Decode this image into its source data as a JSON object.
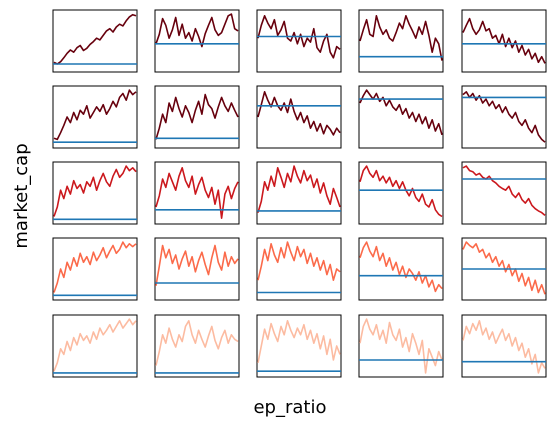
{
  "chart_data": {
    "type": "line",
    "layout": "small-multiples grid, 5 rows x 5 columns, no tick labels",
    "xlabel": "ep_ratio",
    "ylabel": "market_cap",
    "grid": false,
    "colors": {
      "rows": [
        "#67000d",
        "#67000d",
        "#cb181d",
        "#fb6a4a",
        "#fcbba1"
      ],
      "reference_line": "#1f77b4"
    },
    "note": "Each panel: a price-like series (values normalized 0-1 within panel) plus a flat horizontal reference line.",
    "panels": [
      [
        {
          "values": [
            0.12,
            0.09,
            0.13,
            0.2,
            0.28,
            0.34,
            0.3,
            0.38,
            0.42,
            0.33,
            0.37,
            0.44,
            0.49,
            0.55,
            0.52,
            0.6,
            0.68,
            0.72,
            0.66,
            0.75,
            0.8,
            0.77,
            0.86,
            0.93,
            0.97,
            0.95
          ],
          "ref": 0.09
        },
        {
          "values": [
            0.45,
            0.62,
            0.9,
            0.78,
            0.55,
            0.7,
            0.92,
            0.6,
            0.8,
            0.55,
            0.65,
            0.5,
            0.72,
            0.58,
            0.4,
            0.63,
            0.78,
            0.92,
            0.7,
            0.6,
            0.65,
            0.8,
            0.95,
            0.98,
            0.72,
            0.68
          ],
          "ref": 0.45
        },
        {
          "values": [
            0.55,
            0.78,
            0.95,
            0.82,
            0.72,
            0.88,
            0.6,
            0.7,
            0.85,
            0.55,
            0.5,
            0.65,
            0.45,
            0.62,
            0.4,
            0.55,
            0.48,
            0.72,
            0.38,
            0.3,
            0.5,
            0.62,
            0.3,
            0.2,
            0.4,
            0.35
          ],
          "ref": 0.58
        },
        {
          "values": [
            0.5,
            0.7,
            0.88,
            0.62,
            0.58,
            0.95,
            0.75,
            0.62,
            0.7,
            0.55,
            0.5,
            0.65,
            0.82,
            0.72,
            0.95,
            0.8,
            0.68,
            0.55,
            0.75,
            0.62,
            0.85,
            0.6,
            0.3,
            0.55,
            0.45,
            0.15
          ],
          "ref": 0.22
        },
        {
          "values": [
            0.65,
            0.78,
            0.9,
            0.72,
            0.62,
            0.7,
            0.85,
            0.68,
            0.72,
            0.55,
            0.6,
            0.45,
            0.62,
            0.4,
            0.55,
            0.38,
            0.5,
            0.3,
            0.42,
            0.25,
            0.35,
            0.18,
            0.28,
            0.12,
            0.22,
            0.1
          ],
          "ref": 0.45
        }
      ],
      [
        {
          "values": [
            0.12,
            0.1,
            0.22,
            0.35,
            0.5,
            0.4,
            0.58,
            0.45,
            0.62,
            0.55,
            0.7,
            0.48,
            0.58,
            0.68,
            0.6,
            0.72,
            0.55,
            0.65,
            0.78,
            0.68,
            0.85,
            0.92,
            0.8,
            0.98,
            0.9,
            0.95
          ],
          "ref": 0.05
        },
        {
          "values": [
            0.1,
            0.3,
            0.55,
            0.4,
            0.75,
            0.6,
            0.85,
            0.65,
            0.5,
            0.7,
            0.58,
            0.4,
            0.62,
            0.78,
            0.55,
            0.9,
            0.72,
            0.65,
            0.48,
            0.68,
            0.85,
            0.7,
            0.6,
            0.75,
            0.62,
            0.5
          ],
          "ref": 0.12
        },
        {
          "values": [
            0.5,
            0.72,
            0.95,
            0.8,
            0.68,
            0.85,
            0.7,
            0.62,
            0.75,
            0.58,
            0.82,
            0.6,
            0.45,
            0.58,
            0.4,
            0.52,
            0.3,
            0.42,
            0.25,
            0.38,
            0.2,
            0.35,
            0.28,
            0.18,
            0.3,
            0.22
          ],
          "ref": 0.7
        },
        {
          "values": [
            0.75,
            0.88,
            0.98,
            0.9,
            0.82,
            0.92,
            0.78,
            0.85,
            0.7,
            0.8,
            0.68,
            0.62,
            0.72,
            0.55,
            0.65,
            0.48,
            0.58,
            0.42,
            0.55,
            0.38,
            0.5,
            0.3,
            0.45,
            0.25,
            0.38,
            0.18
          ],
          "ref": 0.82
        },
        {
          "values": [
            0.9,
            0.95,
            0.85,
            0.92,
            0.8,
            0.88,
            0.75,
            0.82,
            0.7,
            0.78,
            0.65,
            0.72,
            0.58,
            0.68,
            0.55,
            0.48,
            0.58,
            0.42,
            0.35,
            0.45,
            0.3,
            0.22,
            0.35,
            0.18,
            0.1,
            0.05
          ],
          "ref": 0.85
        }
      ],
      [
        {
          "values": [
            0.08,
            0.25,
            0.55,
            0.4,
            0.62,
            0.48,
            0.72,
            0.58,
            0.65,
            0.5,
            0.7,
            0.62,
            0.78,
            0.55,
            0.72,
            0.85,
            0.7,
            0.62,
            0.8,
            0.92,
            0.78,
            0.85,
            0.98,
            0.9,
            0.95,
            0.88
          ],
          "ref": 0.03
        },
        {
          "values": [
            0.25,
            0.45,
            0.75,
            0.6,
            0.85,
            0.7,
            0.55,
            0.8,
            0.95,
            0.72,
            0.6,
            0.8,
            0.48,
            0.65,
            0.78,
            0.55,
            0.42,
            0.6,
            0.3,
            0.55,
            0.05,
            0.48,
            0.62,
            0.4,
            0.58,
            0.7
          ],
          "ref": 0.2
        },
        {
          "values": [
            0.15,
            0.35,
            0.7,
            0.55,
            0.8,
            0.62,
            0.95,
            0.78,
            0.6,
            0.85,
            0.7,
            0.98,
            0.8,
            0.68,
            0.9,
            0.72,
            0.82,
            0.6,
            0.75,
            0.5,
            0.68,
            0.45,
            0.3,
            0.58,
            0.42,
            0.25
          ],
          "ref": 0.18
        },
        {
          "values": [
            0.7,
            0.9,
            0.98,
            0.85,
            0.78,
            0.9,
            0.72,
            0.8,
            0.68,
            0.78,
            0.62,
            0.72,
            0.58,
            0.7,
            0.55,
            0.45,
            0.58,
            0.42,
            0.35,
            0.48,
            0.3,
            0.25,
            0.38,
            0.2,
            0.12,
            0.08
          ],
          "ref": 0.55
        },
        {
          "values": [
            0.95,
            0.98,
            0.9,
            0.88,
            0.82,
            0.85,
            0.78,
            0.75,
            0.8,
            0.72,
            0.68,
            0.62,
            0.58,
            0.55,
            0.62,
            0.48,
            0.42,
            0.5,
            0.38,
            0.32,
            0.4,
            0.28,
            0.22,
            0.18,
            0.15,
            0.1
          ],
          "ref": 0.75
        }
      ],
      [
        {
          "values": [
            0.08,
            0.25,
            0.5,
            0.35,
            0.62,
            0.48,
            0.7,
            0.55,
            0.78,
            0.62,
            0.72,
            0.58,
            0.8,
            0.65,
            0.75,
            0.88,
            0.7,
            0.82,
            0.92,
            0.78,
            0.85,
            0.98,
            0.88,
            0.95,
            0.9,
            0.95
          ],
          "ref": 0.03
        },
        {
          "values": [
            0.2,
            0.55,
            0.92,
            0.7,
            0.85,
            0.6,
            0.75,
            0.5,
            0.68,
            0.82,
            0.55,
            0.72,
            0.45,
            0.65,
            0.8,
            0.58,
            0.4,
            0.7,
            0.92,
            0.62,
            0.48,
            0.8,
            0.55,
            0.72,
            0.6,
            0.68
          ],
          "ref": 0.25
        },
        {
          "values": [
            0.3,
            0.55,
            0.85,
            0.65,
            0.95,
            0.75,
            0.62,
            0.88,
            0.7,
            0.98,
            0.8,
            0.65,
            0.9,
            0.72,
            0.85,
            0.6,
            0.78,
            0.55,
            0.7,
            0.48,
            0.65,
            0.4,
            0.58,
            0.3,
            0.5,
            0.45
          ],
          "ref": 0.08
        },
        {
          "values": [
            0.7,
            0.88,
            0.98,
            0.82,
            0.72,
            0.9,
            0.65,
            0.78,
            0.55,
            0.7,
            0.48,
            0.62,
            0.4,
            0.55,
            0.35,
            0.5,
            0.42,
            0.3,
            0.45,
            0.25,
            0.38,
            0.18,
            0.3,
            0.1,
            0.22,
            0.15
          ],
          "ref": 0.38
        },
        {
          "values": [
            0.85,
            0.98,
            0.92,
            0.88,
            0.95,
            0.8,
            0.85,
            0.7,
            0.78,
            0.62,
            0.72,
            0.55,
            0.65,
            0.45,
            0.58,
            0.38,
            0.5,
            0.28,
            0.42,
            0.2,
            0.35,
            0.12,
            0.3,
            0.08,
            0.22,
            0.05
          ],
          "ref": 0.5
        }
      ],
      [
        {
          "values": [
            0.05,
            0.2,
            0.45,
            0.35,
            0.58,
            0.42,
            0.65,
            0.52,
            0.72,
            0.6,
            0.68,
            0.55,
            0.75,
            0.62,
            0.82,
            0.7,
            0.78,
            0.88,
            0.75,
            0.85,
            0.95,
            0.82,
            0.9,
            0.98,
            0.88,
            0.95
          ],
          "ref": 0.02
        },
        {
          "values": [
            0.15,
            0.4,
            0.7,
            0.55,
            0.82,
            0.62,
            0.48,
            0.7,
            0.58,
            0.85,
            0.95,
            0.7,
            0.55,
            0.78,
            0.62,
            0.48,
            0.68,
            0.85,
            0.6,
            0.45,
            0.65,
            0.78,
            0.55,
            0.7,
            0.62,
            0.58
          ],
          "ref": 0.02
        },
        {
          "values": [
            0.2,
            0.5,
            0.8,
            0.62,
            0.9,
            0.72,
            0.58,
            0.85,
            0.7,
            0.95,
            0.78,
            0.65,
            0.82,
            0.7,
            0.88,
            0.62,
            0.78,
            0.55,
            0.72,
            0.45,
            0.68,
            0.35,
            0.62,
            0.25,
            0.5,
            0.35
          ],
          "ref": 0.05
        },
        {
          "values": [
            0.55,
            0.85,
            0.98,
            0.8,
            0.7,
            0.88,
            0.62,
            0.78,
            0.55,
            0.92,
            0.7,
            0.6,
            0.8,
            0.48,
            0.65,
            0.4,
            0.72,
            0.55,
            0.35,
            0.6,
            0.02,
            0.45,
            0.3,
            0.15,
            0.4,
            0.25
          ],
          "ref": 0.25
        },
        {
          "values": [
            0.6,
            0.85,
            0.72,
            0.9,
            0.78,
            0.95,
            0.7,
            0.82,
            0.62,
            0.75,
            0.55,
            0.68,
            0.8,
            0.6,
            0.72,
            0.5,
            0.65,
            0.42,
            0.55,
            0.3,
            0.45,
            0.18,
            0.35,
            0.02,
            0.2,
            0.1
          ],
          "ref": 0.22
        }
      ]
    ]
  }
}
